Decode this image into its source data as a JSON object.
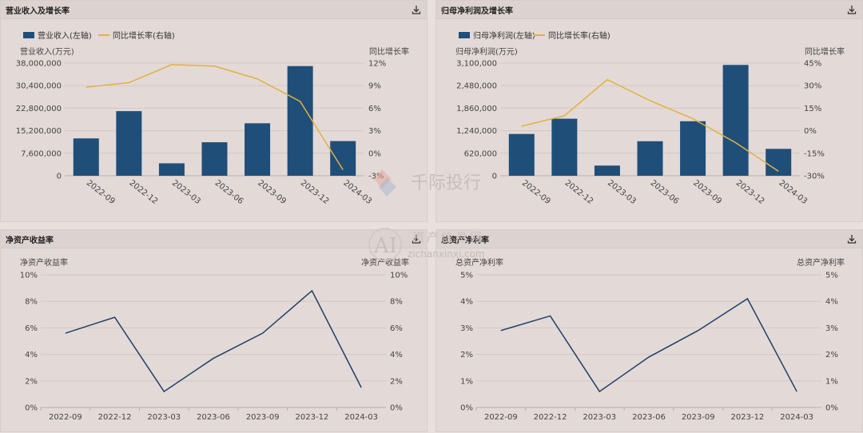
{
  "panels": [
    {
      "title": "营业收入及增长率"
    },
    {
      "title": "归母净利润及增长率"
    },
    {
      "title": "净资产收益率"
    },
    {
      "title": "总资产净利率"
    }
  ],
  "watermark": {
    "brand": "千际投行",
    "site_cn": "资产信息网",
    "site_en": "zichanxinxi.com",
    "logo_text": "AI"
  },
  "colors": {
    "bar": "#1f4e79",
    "growth_line": "#e2b23c",
    "ratio_line": "#1f3f66"
  },
  "chart_data": [
    {
      "type": "bar",
      "title": "营业收入及增长率",
      "categories": [
        "2022-09",
        "2022-12",
        "2023-03",
        "2023-06",
        "2023-09",
        "2023-12",
        "2024-03"
      ],
      "series": [
        {
          "name": "营业收入(左轴)",
          "type": "bar",
          "axis": "left",
          "values": [
            12600000,
            21800000,
            4200000,
            11300000,
            17700000,
            37000000,
            11700000
          ]
        },
        {
          "name": "同比增长率(右轴)",
          "type": "line",
          "axis": "right",
          "values": [
            8.8,
            9.4,
            11.8,
            11.6,
            9.9,
            6.9,
            -2.2
          ]
        }
      ],
      "ylabel": "营业收入(万元)",
      "y2label": "同比增长率",
      "yticks": [
        "0",
        "7,600,000",
        "15,200,000",
        "22,800,000",
        "30,400,000",
        "38,000,000"
      ],
      "y2ticks": [
        "-3%",
        "0%",
        "3%",
        "6%",
        "9%",
        "12%"
      ],
      "ylim": [
        0,
        38000000
      ],
      "y2lim": [
        -3,
        12
      ],
      "legend": "top-left",
      "grid": true
    },
    {
      "type": "bar",
      "title": "归母净利润及增长率",
      "categories": [
        "2022-09",
        "2022-12",
        "2023-03",
        "2023-06",
        "2023-09",
        "2023-12",
        "2024-03"
      ],
      "series": [
        {
          "name": "归母净利润(左轴)",
          "type": "bar",
          "axis": "left",
          "values": [
            1150000,
            1570000,
            280000,
            950000,
            1500000,
            3050000,
            740000
          ]
        },
        {
          "name": "同比增长率(右轴)",
          "type": "line",
          "axis": "right",
          "values": [
            3,
            10,
            34,
            20,
            8,
            -8,
            -27
          ]
        }
      ],
      "ylabel": "归母净利润(万元)",
      "y2label": "同比增长率",
      "yticks": [
        "0",
        "620,000",
        "1,240,000",
        "1,860,000",
        "2,480,000",
        "3,100,000"
      ],
      "y2ticks": [
        "-30%",
        "-15%",
        "0%",
        "15%",
        "30%",
        "45%"
      ],
      "ylim": [
        0,
        3100000
      ],
      "y2lim": [
        -30,
        45
      ],
      "legend": "top-left",
      "grid": true
    },
    {
      "type": "line",
      "title": "净资产收益率",
      "categories": [
        "2022-09",
        "2022-12",
        "2023-03",
        "2023-06",
        "2023-09",
        "2023-12",
        "2024-03"
      ],
      "series": [
        {
          "values": [
            5.6,
            6.8,
            1.2,
            3.7,
            5.6,
            8.8,
            1.5
          ]
        }
      ],
      "ylabel": "净资产收益率",
      "y2label": "净资产收益率",
      "yticks": [
        "0%",
        "2%",
        "4%",
        "6%",
        "8%",
        "10%"
      ],
      "y2ticks": [
        "0%",
        "2%",
        "4%",
        "6%",
        "8%",
        "10%"
      ],
      "ylim": [
        0,
        10
      ],
      "grid": true
    },
    {
      "type": "line",
      "title": "总资产净利率",
      "categories": [
        "2022-09",
        "2022-12",
        "2023-03",
        "2023-06",
        "2023-09",
        "2023-12",
        "2024-03"
      ],
      "series": [
        {
          "values": [
            2.9,
            3.45,
            0.6,
            1.9,
            2.9,
            4.1,
            0.6
          ]
        }
      ],
      "ylabel": "总资产净利率",
      "y2label": "总资产净利率",
      "yticks": [
        "0%",
        "1%",
        "2%",
        "3%",
        "4%",
        "5%"
      ],
      "y2ticks": [
        "0%",
        "1%",
        "2%",
        "3%",
        "4%",
        "5%"
      ],
      "ylim": [
        0,
        5
      ],
      "grid": true
    }
  ]
}
